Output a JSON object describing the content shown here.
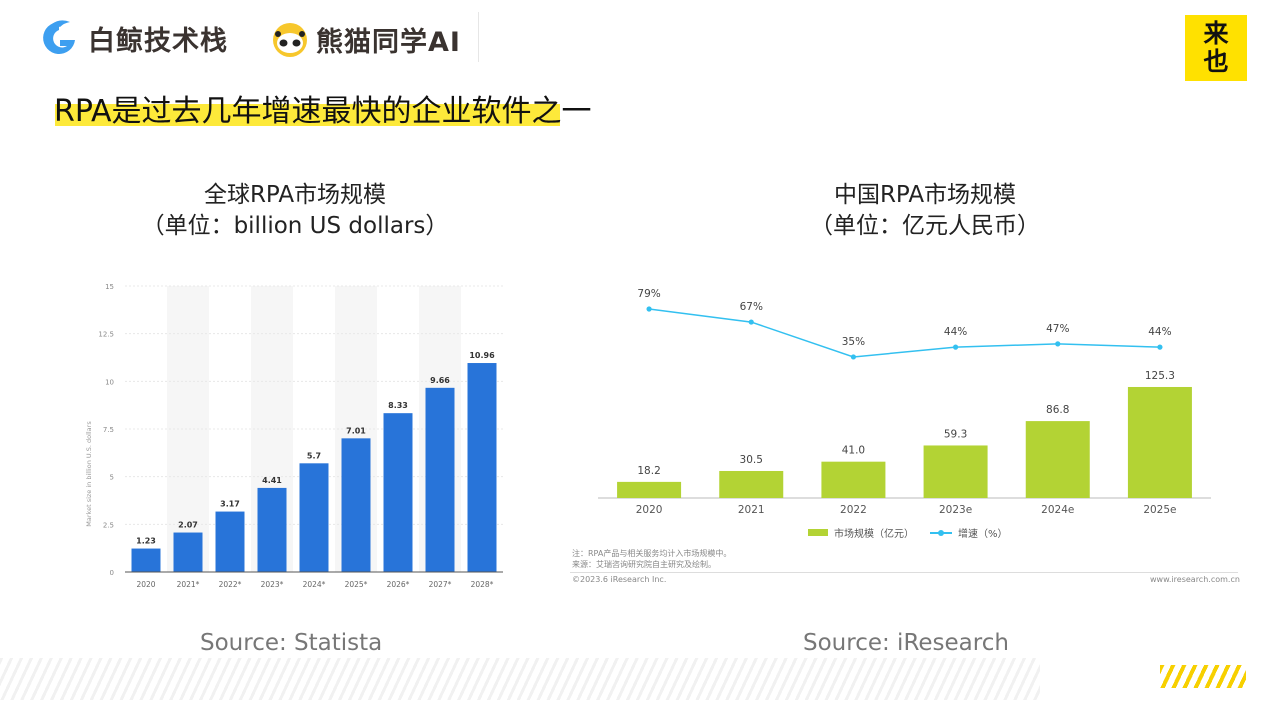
{
  "header": {
    "logo1": "白鲸技术栈",
    "logo2": "熊猫同学AI",
    "brand_badge": "来也"
  },
  "title": "RPA是过去几年增速最快的企业软件之一",
  "left": {
    "title": "全球RPA市场规模",
    "subtitle": "（单位：billion US dollars）",
    "source": "Source: Statista"
  },
  "right": {
    "title": "中国RPA市场规模",
    "subtitle": "（单位：亿元人民币）",
    "source": "Source: iResearch",
    "note1": "注：RPA产品与相关服务均计入市场规模中。",
    "note2": "来源：艾瑞咨询研究院自主研究及绘制。",
    "copyright": "©2023.6 iResearch Inc.",
    "website": "www.iresearch.com.cn"
  },
  "colors": {
    "accent_yellow": "#fde93a",
    "bar_blue": "#2874d9",
    "bar_green": "#b3d334",
    "line_blue": "#33c0f0"
  },
  "chart_data": [
    {
      "type": "bar",
      "ylabel": "Market size in billion U.S. dollars",
      "ylim": [
        0,
        15
      ],
      "yticks": [
        "0",
        "2.5",
        "5",
        "7.5",
        "10",
        "12.5",
        "15"
      ],
      "categories": [
        "2020",
        "2021*",
        "2022*",
        "2023*",
        "2024*",
        "2025*",
        "2026*",
        "2027*",
        "2028*"
      ],
      "values": [
        1.23,
        2.07,
        3.17,
        4.41,
        5.7,
        7.01,
        8.33,
        9.66,
        10.96
      ],
      "labels": [
        "1.23",
        "2.07",
        "3.17",
        "4.41",
        "5.7",
        "7.01",
        "8.33",
        "9.66",
        "10.96"
      ],
      "grid": true
    },
    {
      "type": "bar+line",
      "categories": [
        "2020",
        "2021",
        "2022",
        "2023e",
        "2024e",
        "2025e"
      ],
      "series": [
        {
          "name": "市场规模（亿元）",
          "type": "bar",
          "values": [
            18.2,
            30.5,
            41.0,
            59.3,
            86.8,
            125.3
          ],
          "labels": [
            "18.2",
            "30.5",
            "41.0",
            "59.3",
            "86.8",
            "125.3"
          ]
        },
        {
          "name": "增速（%）",
          "type": "line",
          "values": [
            79,
            67,
            35,
            44,
            47,
            44
          ],
          "labels": [
            "79%",
            "67%",
            "35%",
            "44%",
            "47%",
            "44%"
          ]
        }
      ],
      "legend": "bottom"
    }
  ]
}
